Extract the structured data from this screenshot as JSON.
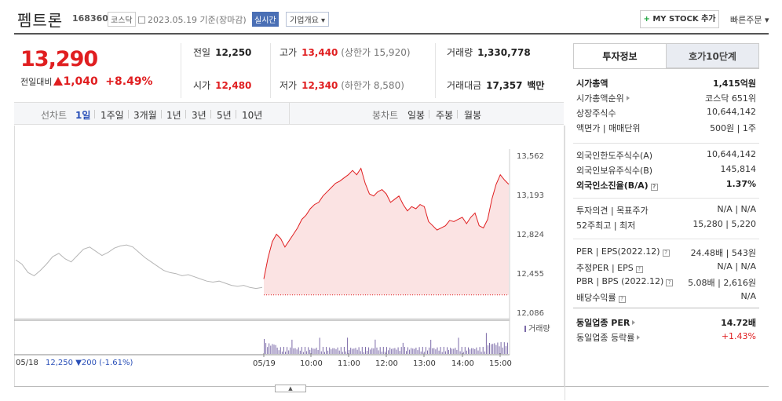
{
  "header": {
    "name": "펨트론",
    "code": "168360",
    "market": "코스닥",
    "date": "2023.05.19",
    "date_suffix": "기준(장마감)",
    "live_badge": "실시간",
    "corp_overview": "기업개요 ▾",
    "mystock_plus": "+",
    "mystock": "MY STOCK 추가",
    "quick_order": "빠른주문 ▾"
  },
  "quote": {
    "price": "13,290",
    "change_label": "전일대비",
    "change": "1,040",
    "change_pct": "+8.49%",
    "prev_label": "전일",
    "prev": "12,250",
    "high_label": "고가",
    "high": "13,440",
    "upper_limit": "(상한가 15,920)",
    "volume_label": "거래량",
    "volume": "1,330,778",
    "open_label": "시가",
    "open": "12,480",
    "low_label": "저가",
    "low": "12,340",
    "lower_limit": "(하한가 8,580)",
    "value_label": "거래대금",
    "value": "17,357",
    "value_unit": "백만"
  },
  "toolbar": {
    "line_chart": "선차트",
    "ranges": [
      "1일",
      "1주일",
      "3개월",
      "1년",
      "3년",
      "5년",
      "10년"
    ],
    "selected_range": "1일",
    "candle_chart": "봉차트",
    "candles": [
      "일봉",
      "주봉",
      "월봉"
    ]
  },
  "chart_data": {
    "type": "line",
    "y_ticks": [
      "13,562",
      "13,193",
      "12,824",
      "12,455",
      "12,086"
    ],
    "ylim": [
      12086,
      13562
    ],
    "x_ticks": [
      "05/18",
      "05/19",
      "10:00",
      "11:00",
      "12:00",
      "13:00",
      "14:00",
      "15:00"
    ],
    "volume_label": "거래량",
    "prev_close": 12250,
    "prev_day_footer": "05/18",
    "prev_day_close": "12,250",
    "prev_day_change": "▼200",
    "prev_day_pct": "(-1.61%)",
    "prev_day_series": [
      12580,
      12540,
      12460,
      12430,
      12480,
      12540,
      12610,
      12640,
      12590,
      12560,
      12620,
      12680,
      12700,
      12660,
      12620,
      12650,
      12690,
      12710,
      12720,
      12700,
      12650,
      12600,
      12560,
      12520,
      12480,
      12460,
      12450,
      12430,
      12440,
      12420,
      12400,
      12380,
      12370,
      12380,
      12360,
      12340,
      12330,
      12340,
      12320,
      12310,
      12320
    ],
    "today_series": [
      12400,
      12600,
      12750,
      12820,
      12780,
      12700,
      12760,
      12820,
      12880,
      12960,
      13000,
      13060,
      13100,
      13120,
      13180,
      13220,
      13260,
      13300,
      13320,
      13350,
      13380,
      13420,
      13380,
      13440,
      13300,
      13200,
      13180,
      13220,
      13240,
      13200,
      13120,
      13150,
      13180,
      13100,
      13040,
      13080,
      13060,
      13100,
      13080,
      12940,
      12900,
      12860,
      12880,
      12900,
      12950,
      12940,
      12960,
      12980,
      12920,
      12980,
      13020,
      12900,
      12880,
      12960,
      13150,
      13290,
      13380,
      13330,
      13290
    ]
  },
  "info": {
    "tab_on": "투자정보",
    "tab_off": "호가10단계",
    "rows1": [
      {
        "k": "시가총액",
        "v": "1,415억원"
      },
      {
        "k": "시가총액순위",
        "v": "코스닥 651위"
      },
      {
        "k": "상장주식수",
        "v": "10,644,142"
      },
      {
        "k": "액면가 | 매매단위",
        "v": "500원 | 1주"
      }
    ],
    "rows2": [
      {
        "k": "외국인한도주식수(A)",
        "v": "10,644,142"
      },
      {
        "k": "외국인보유주식수(B)",
        "v": "145,814"
      },
      {
        "k": "외국인소진율(B/A)",
        "v": "1.37%"
      }
    ],
    "rows3": [
      {
        "k": "투자의견 | 목표주가",
        "v": "N/A | N/A"
      },
      {
        "k": "52주최고 | 최저",
        "v": "15,280 | 5,220"
      }
    ],
    "rows4": [
      {
        "k": "PER | EPS(2022.12)",
        "v": "24.48배 | 543원"
      },
      {
        "k": "추정PER | EPS",
        "v": "N/A | N/A"
      },
      {
        "k": "PBR | BPS (2022.12)",
        "v": "5.08배 | 2,616원"
      },
      {
        "k": "배당수익률",
        "v": "N/A"
      }
    ],
    "rows5": [
      {
        "k": "동일업종 PER",
        "v": "14.72배"
      },
      {
        "k": "동일업종 등락률",
        "v": "+1.43%"
      }
    ]
  },
  "colors": {
    "up": "#e01e20",
    "down": "#2a50b8",
    "accent": "#4a6fb5"
  }
}
